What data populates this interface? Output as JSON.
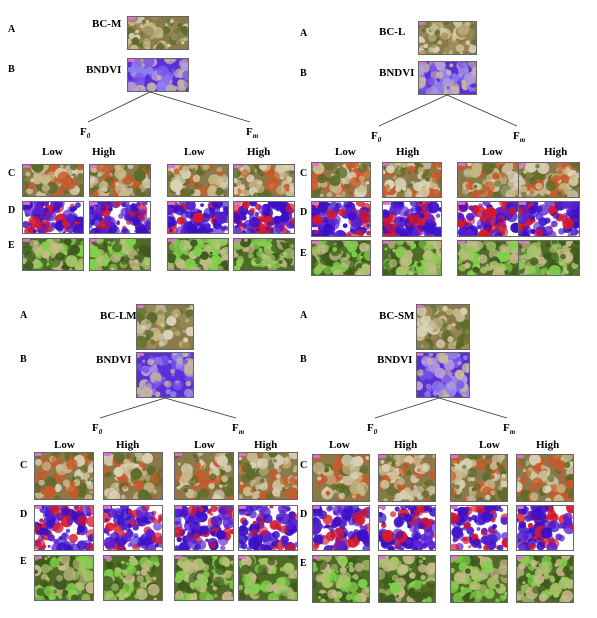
{
  "panels": [
    {
      "name": "BC-M",
      "row_labels": [
        "A",
        "B",
        "C",
        "D",
        "E"
      ],
      "top_labels": [
        "BC-M",
        "BNDVI"
      ],
      "branch_left": "F",
      "branch_left_sub": "0",
      "branch_right": "F",
      "branch_right_sub": "m",
      "cols": [
        "Low",
        "High",
        "Low",
        "High"
      ]
    },
    {
      "name": "BC-L",
      "row_labels": [
        "A",
        "B",
        "C",
        "D",
        "E"
      ],
      "top_labels": [
        "BC-L",
        "BNDVI"
      ],
      "branch_left": "F",
      "branch_left_sub": "0",
      "branch_right": "F",
      "branch_right_sub": "m",
      "cols": [
        "Low",
        "High",
        "Low",
        "High"
      ]
    },
    {
      "name": "BC-LM",
      "row_labels": [
        "A",
        "B",
        "C",
        "D",
        "E"
      ],
      "top_labels": [
        "BC-LM",
        "BNDVI"
      ],
      "branch_left": "F",
      "branch_left_sub": "0",
      "branch_right": "F",
      "branch_right_sub": "m",
      "cols": [
        "Low",
        "High",
        "Low",
        "High"
      ]
    },
    {
      "name": "BC-SM",
      "row_labels": [
        "A",
        "B",
        "C",
        "D",
        "E"
      ],
      "top_labels": [
        "BC-SM",
        "BNDVI"
      ],
      "branch_left": "F",
      "branch_left_sub": "0",
      "branch_right": "F",
      "branch_right_sub": "m",
      "cols": [
        "Low",
        "High",
        "Low",
        "High"
      ]
    }
  ],
  "colors": {
    "photo_bg": "#8a7a4a",
    "photo_a": "#c8b98a",
    "photo_b": "#5d6b2a",
    "photo_c": "#d9d2b8",
    "ndvi_bg": "#5a2fd6",
    "ndvi_a": "#8f7df0",
    "ndvi_b": "#c9b8a0",
    "c_red": "#c85a2a",
    "d_blue": "#3a10c8",
    "d_red": "#d8182a",
    "e_green": "#7fd04a",
    "e_dark": "#4f6b26",
    "magenta": "#e070d0"
  }
}
